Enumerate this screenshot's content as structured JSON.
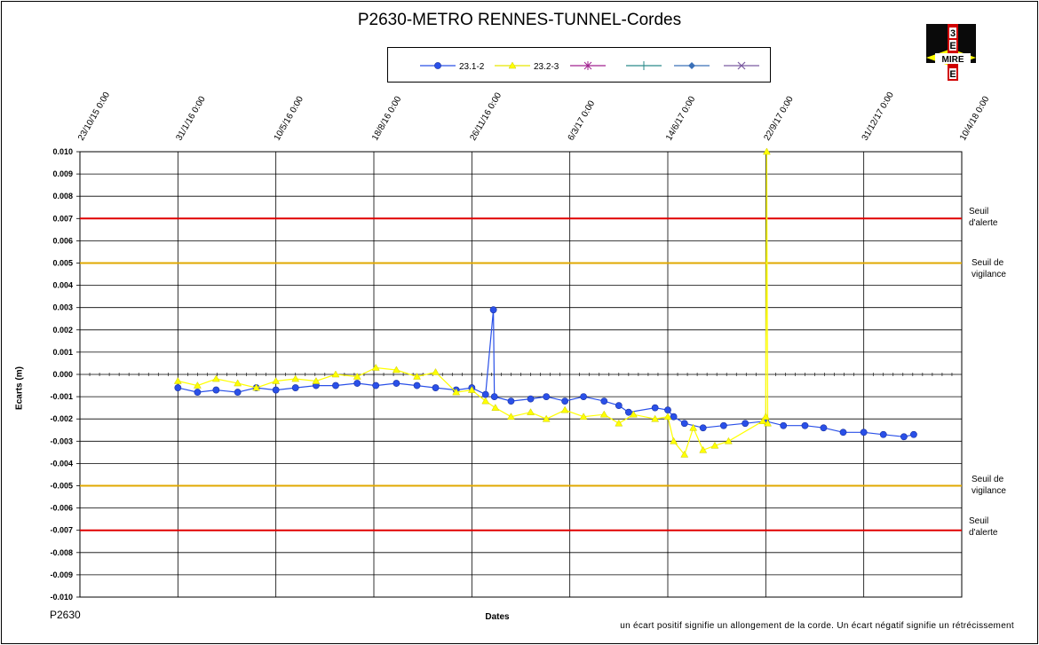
{
  "chart_data": {
    "type": "line",
    "title": "P2630-METRO  RENNES-TUNNEL-Cordes",
    "xlabel": "Dates",
    "ylabel": "Ecarts (m)",
    "ylim": [
      -0.01,
      0.01
    ],
    "y_ticks": [
      "0.010",
      "0.009",
      "0.008",
      "0.007",
      "0.006",
      "0.005",
      "0.004",
      "0.003",
      "0.002",
      "0.001",
      "0.000",
      "-0.001",
      "-0.002",
      "-0.003",
      "-0.004",
      "-0.005",
      "-0.006",
      "-0.007",
      "-0.008",
      "-0.009",
      "-0.010"
    ],
    "x_ticks": [
      "23/10/15 0:00",
      "31/1/16 0:00",
      "10/5/16 0:00",
      "18/8/16 0:00",
      "26/11/16 0:00",
      "6/3/17 0:00",
      "14/6/17 0:00",
      "22/9/17 0:00",
      "31/12/17 0:00",
      "10/4/18 0:00"
    ],
    "grid": true,
    "legend_position": "top",
    "thresholds": [
      {
        "value": 0.007,
        "color": "#e00000",
        "label_line1": "Seuil",
        "label_line2": "d'alerte"
      },
      {
        "value": 0.005,
        "color": "#e0a800",
        "label_line1": "Seuil de",
        "label_line2": "vigilance"
      },
      {
        "value": -0.005,
        "color": "#e0a800",
        "label_line1": "Seuil de",
        "label_line2": "vigilance"
      },
      {
        "value": -0.007,
        "color": "#e00000",
        "label_line1": "Seuil",
        "label_line2": "d'alerte"
      }
    ],
    "series": [
      {
        "name": "23.1-2",
        "color": "#2a50e8",
        "marker": "circle",
        "x": [
          "2016-01-31",
          "2016-02-20",
          "2016-03-10",
          "2016-04-01",
          "2016-04-20",
          "2016-05-10",
          "2016-05-30",
          "2016-06-20",
          "2016-07-10",
          "2016-08-01",
          "2016-08-20",
          "2016-09-10",
          "2016-10-01",
          "2016-10-20",
          "2016-11-10",
          "2016-11-26",
          "2016-12-10",
          "2016-12-18",
          "2016-12-19",
          "2017-01-05",
          "2017-01-25",
          "2017-02-10",
          "2017-03-01",
          "2017-03-20",
          "2017-04-10",
          "2017-04-25",
          "2017-05-05",
          "2017-06-01",
          "2017-06-14",
          "2017-06-20",
          "2017-07-01",
          "2017-07-20",
          "2017-08-10",
          "2017-09-01",
          "2017-09-22",
          "2017-10-10",
          "2017-11-01",
          "2017-11-20",
          "2017-12-10",
          "2017-12-31",
          "2018-01-20",
          "2018-02-10",
          "2018-02-20"
        ],
        "y": [
          -0.0006,
          -0.0008,
          -0.0007,
          -0.0008,
          -0.0006,
          -0.0007,
          -0.0006,
          -0.0005,
          -0.0005,
          -0.0004,
          -0.0005,
          -0.0004,
          -0.0005,
          -0.0006,
          -0.0007,
          -0.0006,
          -0.0009,
          0.0029,
          -0.001,
          -0.0012,
          -0.0011,
          -0.001,
          -0.0012,
          -0.001,
          -0.0012,
          -0.0014,
          -0.0017,
          -0.0015,
          -0.0016,
          -0.0019,
          -0.0022,
          -0.0024,
          -0.0023,
          -0.0022,
          -0.0021,
          -0.0023,
          -0.0023,
          -0.0024,
          -0.0026,
          -0.0026,
          -0.0027,
          -0.0028,
          -0.0027
        ]
      },
      {
        "name": "23.2-3",
        "color": "#ffff00",
        "marker": "triangle",
        "x": [
          "2016-01-31",
          "2016-02-20",
          "2016-03-10",
          "2016-04-01",
          "2016-04-20",
          "2016-05-10",
          "2016-05-30",
          "2016-06-20",
          "2016-07-10",
          "2016-08-01",
          "2016-08-20",
          "2016-09-10",
          "2016-10-01",
          "2016-10-20",
          "2016-11-10",
          "2016-11-26",
          "2016-12-10",
          "2016-12-20",
          "2017-01-05",
          "2017-01-25",
          "2017-02-10",
          "2017-03-01",
          "2017-03-20",
          "2017-04-10",
          "2017-04-25",
          "2017-05-10",
          "2017-06-01",
          "2017-06-14",
          "2017-06-20",
          "2017-07-01",
          "2017-07-10",
          "2017-07-20",
          "2017-08-01",
          "2017-08-15",
          "2017-09-19",
          "2017-09-22",
          "2017-09-23",
          "2017-09-24"
        ],
        "y": [
          -0.0003,
          -0.0005,
          -0.0002,
          -0.0004,
          -0.0006,
          -0.0003,
          -0.0002,
          -0.0003,
          0.0,
          -0.0001,
          0.0003,
          0.0002,
          -0.0001,
          0.0001,
          -0.0008,
          -0.0007,
          -0.0012,
          -0.0015,
          -0.0019,
          -0.0017,
          -0.002,
          -0.0016,
          -0.0019,
          -0.0018,
          -0.0022,
          -0.0018,
          -0.002,
          -0.0019,
          -0.003,
          -0.0036,
          -0.0024,
          -0.0034,
          -0.0032,
          -0.003,
          -0.0021,
          -0.0019,
          0.01,
          -0.0022
        ]
      },
      {
        "name": "",
        "color": "#a0208f",
        "marker": "asterisk",
        "x": [],
        "y": []
      },
      {
        "name": "",
        "color": "#2a8a8a",
        "marker": "plus",
        "x": [],
        "y": []
      },
      {
        "name": "",
        "color": "#3a70b8",
        "marker": "diamond",
        "x": [],
        "y": []
      },
      {
        "name": "",
        "color": "#7a5aa0",
        "marker": "x",
        "x": [],
        "y": []
      }
    ]
  },
  "footer": {
    "reference": "P2630",
    "note": "un écart positif signifie un allongement de la corde. Un écart négatif signifie un rétrécissement"
  },
  "logo": {
    "text": "MIRE",
    "stacked_letters": [
      "3",
      "E",
      "E"
    ]
  }
}
